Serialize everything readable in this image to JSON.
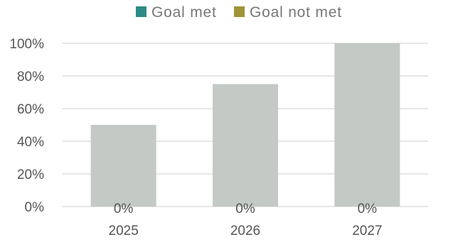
{
  "chart_data": {
    "type": "bar",
    "categories": [
      "2025",
      "2026",
      "2027"
    ],
    "ylim": [
      0,
      100
    ],
    "yticks": [
      0,
      20,
      40,
      60,
      80,
      100
    ],
    "ytick_labels": [
      "0%",
      "20%",
      "40%",
      "60%",
      "80%",
      "100%"
    ],
    "total_values": [
      50,
      75,
      100
    ],
    "series": [
      {
        "name": "Goal met",
        "values": [
          0,
          0,
          0
        ],
        "color": "#2e8b88"
      },
      {
        "name": "Goal not met",
        "values": [
          0,
          0,
          0
        ],
        "color": "#a09437"
      }
    ],
    "bar_labels": [
      "0%",
      "0%",
      "0%"
    ],
    "total_bar_color": "#c3c9c4",
    "grid": true,
    "legend_position": "top-center",
    "xlabel": "",
    "ylabel": ""
  }
}
